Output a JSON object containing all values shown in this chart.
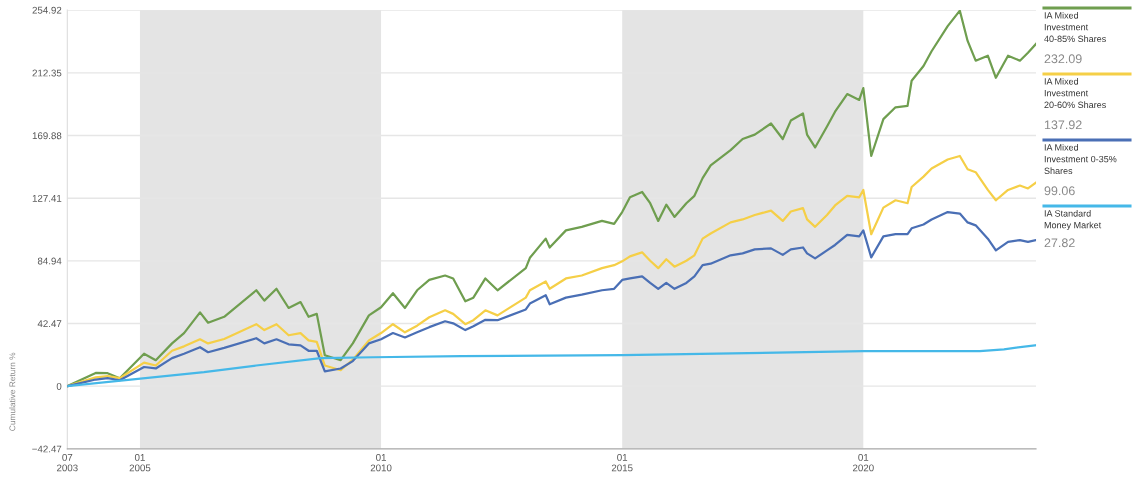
{
  "chart_data": {
    "type": "line",
    "ylabel": "Cumulative Return %",
    "x": [
      "2003-07",
      "2004-02",
      "2004-05",
      "2004-08",
      "2005-02",
      "2005-05",
      "2005-09",
      "2005-12",
      "2006-04",
      "2006-06",
      "2006-10",
      "2007-06",
      "2007-08",
      "2007-11",
      "2008-02",
      "2008-05",
      "2008-07",
      "2008-09",
      "2008-11",
      "2009-03",
      "2009-06",
      "2009-10",
      "2010-01",
      "2010-04",
      "2010-07",
      "2010-10",
      "2011-01",
      "2011-05",
      "2011-07",
      "2011-10",
      "2011-12",
      "2012-03",
      "2012-06",
      "2013-01",
      "2013-02",
      "2013-06",
      "2013-07",
      "2013-11",
      "2014-03",
      "2014-08",
      "2014-11",
      "2015-01",
      "2015-03",
      "2015-06",
      "2015-08",
      "2015-10",
      "2015-12",
      "2016-02",
      "2016-05",
      "2016-07",
      "2016-09",
      "2016-11",
      "2017-04",
      "2017-07",
      "2017-10",
      "2018-02",
      "2018-05",
      "2018-07",
      "2018-10",
      "2018-11",
      "2019-01",
      "2019-04",
      "2019-06",
      "2019-09",
      "2019-12",
      "2020-01",
      "2020-03",
      "2020-06",
      "2020-09",
      "2020-12",
      "2021-01",
      "2021-04",
      "2021-06",
      "2021-10",
      "2022-01",
      "2022-03",
      "2022-05",
      "2022-08",
      "2022-10",
      "2023-01",
      "2023-04",
      "2023-06",
      "2023-08"
    ],
    "series": [
      {
        "name": "IA Mixed\nInvestment\n40-85% Shares",
        "color": "#6f9e4f",
        "values": [
          0,
          9,
          8.8,
          5.4,
          22,
          17.6,
          29,
          36,
          50,
          43,
          47,
          65,
          58,
          66,
          53,
          57,
          47,
          49,
          21,
          17.6,
          29,
          48,
          53.5,
          63,
          53,
          65,
          72,
          75,
          73,
          57.5,
          60,
          73,
          65,
          80,
          87,
          100,
          94,
          105.6,
          108,
          112,
          110,
          118,
          128,
          131.6,
          124,
          112,
          123,
          114.7,
          124,
          129,
          141,
          149.6,
          160,
          167.5,
          170.5,
          178,
          167.5,
          180,
          184.8,
          170.5,
          161.8,
          176,
          186,
          198,
          194,
          202,
          156,
          181,
          189,
          190,
          207,
          217,
          227,
          244,
          254.5,
          234,
          220.6,
          224,
          209,
          224,
          220.6,
          226,
          232
        ]
      },
      {
        "name": "IA Mixed\nInvestment\n20-60% Shares",
        "color": "#f5cf47",
        "values": [
          0,
          6,
          6.8,
          5.4,
          16,
          14,
          24,
          27,
          31.8,
          29,
          32,
          42,
          38,
          42,
          34.5,
          36,
          31,
          30,
          14,
          10.8,
          18,
          31,
          36,
          42,
          36.5,
          41,
          46.7,
          51.4,
          49,
          42,
          44.7,
          51.4,
          48,
          60,
          65,
          71,
          66,
          73,
          75,
          80,
          82,
          84.6,
          88,
          90.7,
          85,
          80,
          86,
          81,
          85,
          88.7,
          100,
          103.5,
          111,
          113,
          116,
          119,
          112,
          118.4,
          120.7,
          113,
          108,
          116,
          122.5,
          129,
          128,
          133,
          103,
          121,
          126,
          124,
          135,
          142,
          147.5,
          153.6,
          156,
          147,
          145,
          133,
          126,
          133,
          136,
          134,
          138
        ]
      },
      {
        "name": "IA Mixed\nInvestment 0-35%\nShares",
        "color": "#4a6fb5",
        "values": [
          0,
          4.5,
          5.4,
          4,
          13,
          12,
          19,
          22,
          26.4,
          23,
          26,
          32.5,
          29,
          31.8,
          28.4,
          27.7,
          24,
          24,
          10,
          12,
          17,
          29,
          31.8,
          36,
          33,
          36.5,
          40,
          44,
          42.6,
          38,
          40.6,
          45,
          44.7,
          52,
          56,
          61.6,
          55.5,
          60,
          62,
          65,
          66,
          72,
          73,
          74.4,
          70,
          66,
          70,
          66,
          70,
          74.4,
          82,
          83,
          88.7,
          90,
          92.7,
          93.4,
          89,
          92.7,
          94,
          90,
          86.6,
          92,
          95.7,
          102.5,
          101.5,
          105.6,
          87.3,
          101.5,
          103,
          103,
          107,
          109.6,
          113,
          118,
          117,
          111,
          109,
          100,
          92,
          97.8,
          99,
          97.8,
          99
        ]
      },
      {
        "name": "IA Standard\nMoney Market",
        "color": "#45b8e8",
        "x": [
          "2003-07",
          "2006-05",
          "2007-06",
          "2008-10",
          "2009-11",
          "2011-09",
          "2015-01",
          "2020-01",
          "2022-06",
          "2022-12",
          "2023-08"
        ],
        "values": [
          0,
          9.5,
          14,
          19,
          19.6,
          20.3,
          21,
          23.7,
          23.7,
          25,
          27.8
        ]
      }
    ],
    "xlim": [
      "2003-07",
      "2023-08"
    ],
    "xticks": [
      {
        "value": "2003-07",
        "label": "07\n2003"
      },
      {
        "value": "2005-01",
        "label": "01\n2005"
      },
      {
        "value": "2010-01",
        "label": "01\n2010"
      },
      {
        "value": "2015-01",
        "label": "01\n2015"
      },
      {
        "value": "2020-01",
        "label": "01\n2020"
      }
    ],
    "ylim": [
      -42.47,
      254.92
    ],
    "yticks": [
      {
        "value": -42.47,
        "label": "−42.47"
      },
      0,
      42.47,
      84.94,
      127.41,
      169.88,
      212.35,
      254.92
    ],
    "bands": [
      {
        "axis": "x",
        "from": "2005-01",
        "to": "2010-01",
        "color": "#e4e4e4"
      },
      {
        "axis": "x",
        "from": "2015-01",
        "to": "2020-01",
        "color": "#e4e4e4"
      }
    ],
    "annotations": [
      "232.09",
      "137.92",
      "99.06",
      "27.82"
    ],
    "grid": "y",
    "legend": "right",
    "marker": "none",
    "line_style": "solid"
  }
}
